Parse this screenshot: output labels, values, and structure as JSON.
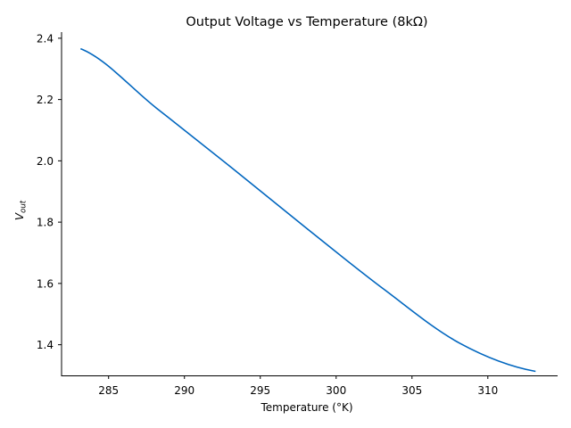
{
  "chart_data": {
    "type": "line",
    "title": "Output Voltage vs Temperature (8kΩ)",
    "xlabel": "Temperature (°K)",
    "ylabel_main": "V",
    "ylabel_sub": "out",
    "xlim": [
      281.9,
      314.6
    ],
    "ylim": [
      1.3,
      2.42
    ],
    "x_ticks": [
      285,
      290,
      295,
      300,
      305,
      310
    ],
    "x_tick_labels": [
      "285",
      "290",
      "295",
      "300",
      "305",
      "310"
    ],
    "y_ticks": [
      1.4,
      1.6,
      1.8,
      2.0,
      2.2,
      2.4
    ],
    "y_tick_labels": [
      "1.4",
      "1.6",
      "1.8",
      "2.0",
      "2.2",
      "2.4"
    ],
    "grid": false,
    "series": [
      {
        "color": "#0066bf",
        "x": [
          283.15,
          288.15,
          293.15,
          298.15,
          303.15,
          308.15,
          313.15
        ],
        "y": [
          2.366,
          2.172,
          1.976,
          1.776,
          1.581,
          1.405,
          1.313
        ]
      }
    ]
  }
}
